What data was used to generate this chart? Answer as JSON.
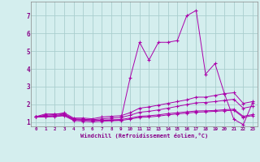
{
  "xlabel": "Windchill (Refroidissement éolien,°C)",
  "background_color": "#d4eeee",
  "grid_color": "#aacece",
  "line_color": "#aa00aa",
  "xlim": [
    -0.5,
    23.5
  ],
  "ylim": [
    0.75,
    7.8
  ],
  "xticks": [
    0,
    1,
    2,
    3,
    4,
    5,
    6,
    7,
    8,
    9,
    10,
    11,
    12,
    13,
    14,
    15,
    16,
    17,
    18,
    19,
    20,
    21,
    22,
    23
  ],
  "yticks": [
    1,
    2,
    3,
    4,
    5,
    6,
    7
  ],
  "line1_x": [
    0,
    1,
    2,
    3,
    4,
    5,
    6,
    7,
    8,
    9,
    10,
    11,
    12,
    13,
    14,
    15,
    16,
    17,
    18,
    19,
    20,
    21,
    22,
    23
  ],
  "line1_y": [
    1.3,
    1.45,
    1.45,
    1.45,
    1.15,
    1.15,
    1.1,
    1.1,
    1.1,
    1.1,
    3.5,
    5.5,
    4.5,
    5.5,
    5.5,
    5.6,
    7.0,
    7.3,
    3.7,
    4.3,
    2.6,
    1.15,
    0.85,
    2.1
  ],
  "line2_x": [
    0,
    1,
    2,
    3,
    4,
    5,
    6,
    7,
    8,
    9,
    10,
    11,
    12,
    13,
    14,
    15,
    16,
    17,
    18,
    19,
    20,
    21,
    22,
    23
  ],
  "line2_y": [
    1.3,
    1.38,
    1.42,
    1.52,
    1.22,
    1.22,
    1.18,
    1.28,
    1.32,
    1.35,
    1.52,
    1.78,
    1.85,
    1.95,
    2.05,
    2.15,
    2.25,
    2.4,
    2.4,
    2.5,
    2.6,
    2.65,
    2.05,
    2.15
  ],
  "line3_x": [
    0,
    1,
    2,
    3,
    4,
    5,
    6,
    7,
    8,
    9,
    10,
    11,
    12,
    13,
    14,
    15,
    16,
    17,
    18,
    19,
    20,
    21,
    22,
    23
  ],
  "line3_y": [
    1.3,
    1.33,
    1.36,
    1.44,
    1.17,
    1.15,
    1.12,
    1.18,
    1.22,
    1.25,
    1.38,
    1.55,
    1.6,
    1.68,
    1.78,
    1.88,
    1.98,
    2.08,
    2.1,
    2.15,
    2.22,
    2.28,
    1.78,
    1.88
  ],
  "line4_x": [
    0,
    1,
    2,
    3,
    4,
    5,
    6,
    7,
    8,
    9,
    10,
    11,
    12,
    13,
    14,
    15,
    16,
    17,
    18,
    19,
    20,
    21,
    22,
    23
  ],
  "line4_y": [
    1.3,
    1.32,
    1.33,
    1.38,
    1.13,
    1.1,
    1.07,
    1.1,
    1.12,
    1.14,
    1.22,
    1.32,
    1.35,
    1.4,
    1.47,
    1.52,
    1.57,
    1.62,
    1.63,
    1.65,
    1.69,
    1.72,
    1.32,
    1.42
  ],
  "line5_x": [
    0,
    1,
    2,
    3,
    4,
    5,
    6,
    7,
    8,
    9,
    10,
    11,
    12,
    13,
    14,
    15,
    16,
    17,
    18,
    19,
    20,
    21,
    22,
    23
  ],
  "line5_y": [
    1.28,
    1.28,
    1.3,
    1.35,
    1.08,
    1.04,
    1.01,
    1.04,
    1.06,
    1.08,
    1.16,
    1.26,
    1.28,
    1.33,
    1.4,
    1.45,
    1.5,
    1.55,
    1.57,
    1.6,
    1.63,
    1.66,
    1.26,
    1.36
  ]
}
